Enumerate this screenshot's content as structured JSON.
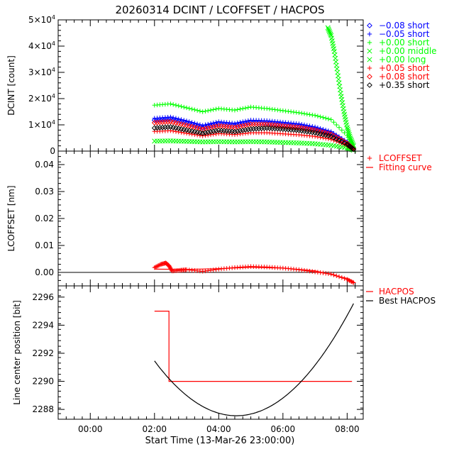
{
  "figure": {
    "title": "20260314 DCINT / LCOFFSET / HACPOS",
    "xlabel": "Start Time (13-Mar-26 23:00:00)",
    "xticks": [
      "00:00",
      "02:00",
      "04:00",
      "06:00",
      "08:00"
    ],
    "xtick_values": [
      1,
      3,
      5,
      7,
      9
    ],
    "xlim": [
      0,
      9.5
    ]
  },
  "chart_data": [
    {
      "type": "scatter",
      "title": "DCINT",
      "ylabel": "DCINT [count]",
      "ylim": [
        0,
        50000
      ],
      "yticks": [
        {
          "value": 0,
          "mant": "0",
          "exp": ""
        },
        {
          "value": 10000,
          "mant": "1×10",
          "exp": "4"
        },
        {
          "value": 20000,
          "mant": "2×10",
          "exp": "4"
        },
        {
          "value": 30000,
          "mant": "3×10",
          "exp": "4"
        },
        {
          "value": 40000,
          "mant": "4×10",
          "exp": "4"
        },
        {
          "value": 50000,
          "mant": "5×10",
          "exp": "4"
        }
      ],
      "legend_position": "right",
      "series": [
        {
          "name": "−0.08 short",
          "marker": "diamond",
          "color": "#0000ff",
          "x": [
            3.0,
            3.5,
            4.0,
            4.5,
            5.0,
            5.5,
            6.0,
            6.5,
            7.0,
            7.5,
            8.0,
            8.5,
            9.0,
            9.2
          ],
          "y": [
            11800,
            12300,
            10800,
            9000,
            10400,
            9800,
            11000,
            10800,
            10200,
            9600,
            8500,
            6800,
            3000,
            800
          ]
        },
        {
          "name": "−0.05 short",
          "marker": "plus",
          "color": "#0000ff",
          "x": [
            3.0,
            3.5,
            4.0,
            4.5,
            5.0,
            5.5,
            6.0,
            6.5,
            7.0,
            7.5,
            8.0,
            8.5,
            9.0,
            9.2
          ],
          "y": [
            12500,
            13000,
            11500,
            9800,
            11200,
            10600,
            11800,
            11600,
            11000,
            10400,
            9200,
            7400,
            3500,
            1000
          ]
        },
        {
          "name": "+0.00 short",
          "marker": "plus",
          "color": "#00ff00",
          "x": [
            3.0,
            3.5,
            4.0,
            4.5,
            5.0,
            5.5,
            6.0,
            6.5,
            7.0,
            7.5,
            8.0,
            8.5,
            9.0,
            9.2
          ],
          "y": [
            17500,
            18000,
            16500,
            15000,
            16200,
            15600,
            16800,
            16200,
            15400,
            14600,
            13600,
            12000,
            6000,
            1500
          ]
        },
        {
          "name": "+0.00 middle",
          "marker": "cross",
          "color": "#00ff00",
          "x": [
            8.4,
            8.5,
            8.6,
            8.7,
            8.8,
            8.9,
            9.0,
            9.1,
            9.2
          ],
          "y": [
            47000,
            44000,
            38000,
            30000,
            22000,
            15000,
            9000,
            5000,
            2000
          ]
        },
        {
          "name": "+0.00 long",
          "marker": "cross",
          "color": "#00ff00",
          "x": [
            3.0,
            3.5,
            4.0,
            4.5,
            5.0,
            5.5,
            6.0,
            6.5,
            7.0,
            7.5,
            8.0,
            8.5,
            9.0,
            9.2
          ],
          "y": [
            3800,
            3900,
            3700,
            3500,
            3600,
            3500,
            3600,
            3500,
            3300,
            3100,
            2800,
            2200,
            1200,
            400
          ]
        },
        {
          "name": "+0.05 short",
          "marker": "plus",
          "color": "#ff0000",
          "x": [
            3.0,
            3.5,
            4.0,
            4.5,
            5.0,
            5.5,
            6.0,
            6.5,
            7.0,
            7.5,
            8.0,
            8.5,
            9.0,
            9.2
          ],
          "y": [
            7500,
            7800,
            6800,
            5800,
            6700,
            6300,
            7000,
            7000,
            6600,
            6200,
            5600,
            4500,
            2200,
            600
          ]
        },
        {
          "name": "+0.08 short",
          "marker": "diamond",
          "color": "#ff0000",
          "x": [
            3.0,
            3.5,
            4.0,
            4.5,
            5.0,
            5.5,
            6.0,
            6.5,
            7.0,
            7.5,
            8.0,
            8.5,
            9.0,
            9.2
          ],
          "y": [
            10800,
            11200,
            9800,
            8300,
            9600,
            9000,
            10200,
            10200,
            9600,
            9000,
            8000,
            6400,
            2900,
            800
          ]
        },
        {
          "name": "+0.35 short",
          "marker": "diamond",
          "color": "#000000",
          "x": [
            3.0,
            3.5,
            4.0,
            4.5,
            5.0,
            5.5,
            6.0,
            6.5,
            7.0,
            7.5,
            8.0,
            8.5,
            9.0,
            9.2
          ],
          "y": [
            8800,
            9200,
            8000,
            6800,
            7900,
            7400,
            8400,
            8800,
            8400,
            7900,
            7000,
            5600,
            2600,
            700
          ]
        }
      ]
    },
    {
      "type": "line",
      "title": "LCOFFSET",
      "ylabel": "LCOFFSET [nm]",
      "ylim": [
        -0.005,
        0.045
      ],
      "yticks": [
        {
          "value": 0,
          "label": "0.00"
        },
        {
          "value": 0.01,
          "label": "0.01"
        },
        {
          "value": 0.02,
          "label": "0.02"
        },
        {
          "value": 0.03,
          "label": "0.03"
        },
        {
          "value": 0.04,
          "label": "0.04"
        }
      ],
      "hline": 0,
      "series": [
        {
          "name": "LCOFFSET",
          "marker": "plus",
          "color": "#ff0000",
          "x": [
            3.0,
            3.2,
            3.35,
            3.45,
            3.55,
            3.8,
            4.0,
            4.5,
            5.0,
            5.5,
            6.0,
            6.5,
            7.0,
            7.5,
            8.0,
            8.5,
            9.0,
            9.2
          ],
          "y": [
            0.0018,
            0.003,
            0.0035,
            0.0025,
            0.0005,
            0.0008,
            0.001,
            0.0004,
            0.0012,
            0.0018,
            0.0022,
            0.002,
            0.0016,
            0.001,
            0.0002,
            -0.0006,
            -0.0026,
            -0.0038
          ]
        },
        {
          "name": "Fitting curve",
          "marker": "line",
          "color": "#ff0000",
          "x": [
            3.0,
            4.0,
            5.0,
            6.0,
            7.0,
            8.0,
            9.0,
            9.2
          ],
          "y": [
            0.0012,
            0.0011,
            0.0014,
            0.0019,
            0.0016,
            0.0006,
            -0.0022,
            -0.0034
          ]
        }
      ]
    },
    {
      "type": "line",
      "title": "HACPOS",
      "ylabel": "Line center position [bit]",
      "ylim": [
        2287.3,
        2296.8
      ],
      "yticks": [
        {
          "value": 2288,
          "label": "2288"
        },
        {
          "value": 2290,
          "label": "2290"
        },
        {
          "value": 2292,
          "label": "2292"
        },
        {
          "value": 2294,
          "label": "2294"
        },
        {
          "value": 2296,
          "label": "2296"
        }
      ],
      "series": [
        {
          "name": "HACPOS",
          "style": "step",
          "color": "#ff0000",
          "x": [
            3.0,
            3.45,
            3.45,
            9.15
          ],
          "y": [
            2295,
            2295,
            2290,
            2290
          ]
        },
        {
          "name": "Best HACPOS",
          "style": "curve",
          "color": "#000000",
          "fn": "parabola",
          "vertex_x": 5.55,
          "vertex_y": 2287.55,
          "coef": 0.6,
          "x_range": [
            3.0,
            9.2
          ]
        }
      ]
    }
  ]
}
